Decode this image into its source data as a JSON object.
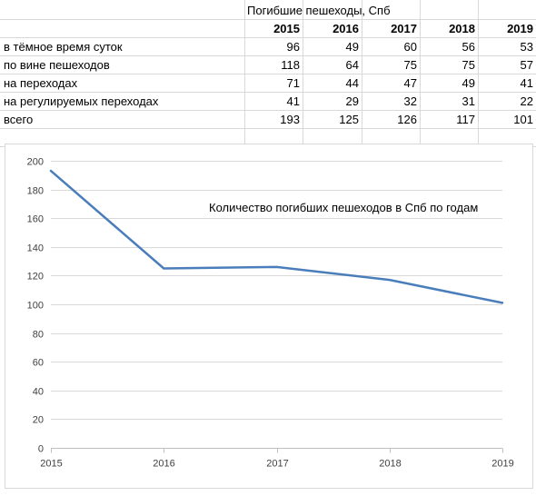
{
  "table": {
    "title": "Погибшие пешеходы, Спб",
    "years": [
      "2015",
      "2016",
      "2017",
      "2018",
      "2019"
    ],
    "rows": [
      {
        "label": "в тёмное время суток",
        "values": [
          "96",
          "49",
          "60",
          "56",
          "53"
        ]
      },
      {
        "label": "по вине пешеходов",
        "values": [
          "118",
          "64",
          "75",
          "75",
          "57"
        ]
      },
      {
        "label": "на переходах",
        "values": [
          "71",
          "44",
          "47",
          "49",
          "41"
        ]
      },
      {
        "label": "на регулируемых переходах",
        "values": [
          "41",
          "29",
          "32",
          "31",
          "22"
        ]
      },
      {
        "label": "всего",
        "values": [
          "193",
          "125",
          "126",
          "117",
          "101"
        ]
      }
    ]
  },
  "chart_data": {
    "type": "line",
    "title": "Количество погибших пешеходов в Спб по годам",
    "x": [
      "2015",
      "2016",
      "2017",
      "2018",
      "2019"
    ],
    "series": [
      {
        "values": [
          193,
          125,
          126,
          117,
          101
        ],
        "color": "#4a7ebb"
      }
    ],
    "ylim": [
      0,
      200
    ],
    "y_ticks": [
      "0",
      "20",
      "40",
      "60",
      "80",
      "100",
      "120",
      "140",
      "160",
      "180",
      "200"
    ],
    "xlabel": "",
    "ylabel": "",
    "grid": true,
    "legend": "none"
  }
}
